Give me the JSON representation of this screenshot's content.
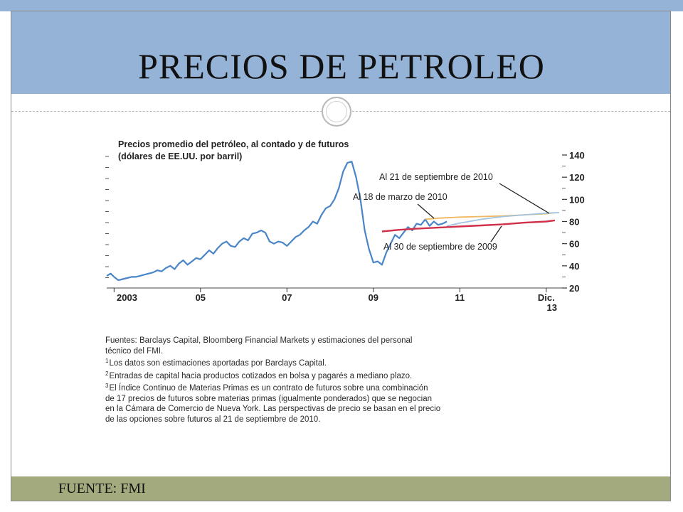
{
  "slide": {
    "title": "PRECIOS DE  PETROLEO",
    "footer": "FUENTE: FMI"
  },
  "notes": [
    {
      "marker": "",
      "text": "Fuentes: Barclays Capital, Bloomberg Financial Markets y estimaciones del personal"
    },
    {
      "marker": "",
      "text": "técnico del FMI."
    },
    {
      "marker": "1",
      "text": "Los datos son estimaciones aportadas por Barclays Capital."
    },
    {
      "marker": "2",
      "text": "Entradas de capital hacia productos cotizados en bolsa y pagarés a mediano plazo."
    },
    {
      "marker": "3",
      "text": "El Índice Continuo de Materias Primas es un contrato de futuros sobre una combinación"
    },
    {
      "marker": "",
      "text": "de 17 precios de futuros sobre materias primas (igualmente ponderados) que se negocian"
    },
    {
      "marker": "",
      "text": "en la Cámara de Comercio de Nueva York. Las perspectivas de precio se basan en el precio"
    },
    {
      "marker": "",
      "text": "de las opciones sobre futuros al 21 de septiembre de 2010."
    }
  ],
  "chart_data": {
    "type": "line",
    "title": "Precios promedio del petróleo, al contado y de futuros",
    "subtitle": "(dólares de EE.UU. por barril)",
    "x_ticks": [
      {
        "x": 2003.0,
        "label": "2003"
      },
      {
        "x": 2005.0,
        "label": "05"
      },
      {
        "x": 2007.0,
        "label": "07"
      },
      {
        "x": 2009.0,
        "label": "09"
      },
      {
        "x": 2011.0,
        "label": "11"
      },
      {
        "x": 2013.0,
        "label": "Dic.",
        "label2": "13"
      }
    ],
    "xlim": [
      2002.83,
      2013.3
    ],
    "ylim": [
      20,
      140
    ],
    "y_ticks": [
      20,
      40,
      60,
      80,
      100,
      120,
      140
    ],
    "colors": {
      "spot": "#4a86c7",
      "mar2010": "#f0b860",
      "sep2010": "#9fc3e0",
      "sep2009": "#d0304a"
    },
    "series": [
      {
        "key": "spot",
        "x": [
          2002.83,
          2002.92,
          2003.0,
          2003.1,
          2003.2,
          2003.3,
          2003.4,
          2003.5,
          2003.6,
          2003.7,
          2003.8,
          2003.9,
          2004.0,
          2004.1,
          2004.2,
          2004.3,
          2004.4,
          2004.5,
          2004.6,
          2004.7,
          2004.8,
          2004.9,
          2005.0,
          2005.1,
          2005.2,
          2005.3,
          2005.4,
          2005.5,
          2005.6,
          2005.7,
          2005.8,
          2005.9,
          2006.0,
          2006.1,
          2006.2,
          2006.3,
          2006.4,
          2006.5,
          2006.6,
          2006.7,
          2006.8,
          2006.9,
          2007.0,
          2007.1,
          2007.2,
          2007.3,
          2007.4,
          2007.5,
          2007.6,
          2007.7,
          2007.8,
          2007.9,
          2008.0,
          2008.1,
          2008.2,
          2008.3,
          2008.4,
          2008.5,
          2008.6,
          2008.7,
          2008.8,
          2008.9,
          2009.0,
          2009.1,
          2009.2,
          2009.3,
          2009.4,
          2009.5,
          2009.6,
          2009.7,
          2009.8,
          2009.9,
          2010.0,
          2010.1,
          2010.2,
          2010.3,
          2010.4,
          2010.5,
          2010.6,
          2010.7
        ],
        "y": [
          31,
          33,
          30,
          27,
          28,
          29,
          30,
          30,
          31,
          32,
          33,
          34,
          36,
          35,
          38,
          40,
          37,
          42,
          45,
          41,
          44,
          47,
          46,
          50,
          54,
          51,
          56,
          60,
          62,
          58,
          57,
          62,
          65,
          63,
          69,
          70,
          72,
          70,
          62,
          60,
          62,
          61,
          58,
          62,
          66,
          68,
          72,
          75,
          80,
          78,
          86,
          92,
          94,
          100,
          110,
          125,
          133,
          134,
          120,
          100,
          72,
          55,
          43,
          44,
          41,
          52,
          60,
          68,
          65,
          70,
          75,
          72,
          78,
          77,
          82,
          76,
          80,
          77,
          78,
          80
        ]
      },
      {
        "key": "mar2010",
        "x": [
          2010.2,
          2010.5,
          2011.0,
          2011.5,
          2012.0,
          2012.5,
          2013.0,
          2013.2
        ],
        "y": [
          82,
          83,
          84,
          84.5,
          85,
          86,
          87,
          88
        ]
      },
      {
        "key": "sep2010",
        "x": [
          2010.7,
          2011.0,
          2011.5,
          2012.0,
          2012.5,
          2013.0,
          2013.3
        ],
        "y": [
          76,
          78.5,
          82,
          84.5,
          86,
          87.5,
          88
        ]
      },
      {
        "key": "sep2009",
        "x": [
          2009.2,
          2009.6,
          2010.0,
          2010.5,
          2011.0,
          2011.5,
          2012.0,
          2012.5,
          2013.0,
          2013.2
        ],
        "y": [
          71,
          72.5,
          73.5,
          74.5,
          75.5,
          76.5,
          77.5,
          79,
          80,
          81
        ]
      }
    ],
    "annotations": [
      {
        "text": "Al 21 de septiembre de 2010",
        "series": "sep2010"
      },
      {
        "text": "Al 18 de marzo de 2010",
        "series": "mar2010"
      },
      {
        "text": "Al 30 de septiembre de 2009",
        "series": "sep2009"
      }
    ]
  }
}
